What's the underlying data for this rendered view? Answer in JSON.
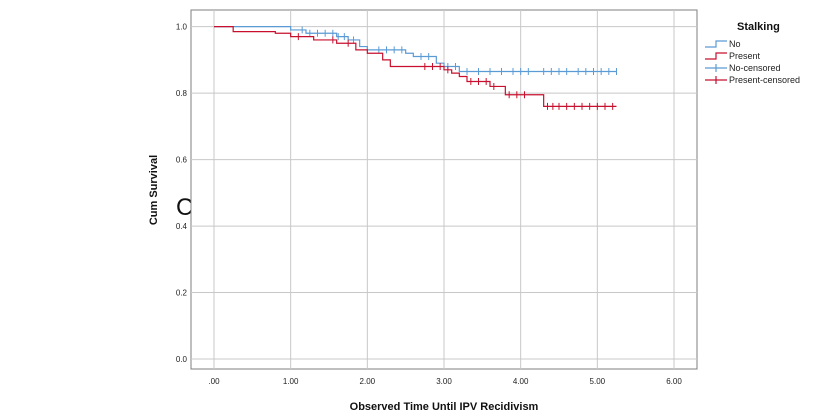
{
  "panel_letter": "C",
  "chart_data": {
    "type": "line",
    "subtype": "kaplan-meier",
    "xlabel": "Observed Time Until IPV Recidivism",
    "ylabel": "Cum Survival",
    "xlim": [
      -0.3,
      6.3
    ],
    "ylim": [
      -0.03,
      1.05
    ],
    "x_ticks": [
      0,
      1,
      2,
      3,
      4,
      5,
      6
    ],
    "x_tick_labels": [
      ".00",
      "1.00",
      "2.00",
      "3.00",
      "4.00",
      "5.00",
      "6.00"
    ],
    "y_ticks": [
      0,
      0.2,
      0.4,
      0.6,
      0.8,
      1.0
    ],
    "y_tick_labels": [
      "0.0",
      "0.2",
      "0.4",
      "0.6",
      "0.8",
      "1.0"
    ],
    "grid": true,
    "legend_position": "top-right",
    "legend": {
      "title": "Stalking",
      "entries": [
        "No",
        "Present",
        "No-censored",
        "Present-censored"
      ]
    },
    "colors": {
      "no": "#5b9bd5",
      "present": "#c8102e"
    },
    "series": [
      {
        "name": "No",
        "color": "#5b9bd5",
        "steps": [
          [
            0.0,
            1.0
          ],
          [
            1.0,
            0.99
          ],
          [
            1.2,
            0.98
          ],
          [
            1.6,
            0.97
          ],
          [
            1.75,
            0.96
          ],
          [
            1.9,
            0.94
          ],
          [
            2.0,
            0.93
          ],
          [
            2.5,
            0.92
          ],
          [
            2.6,
            0.91
          ],
          [
            2.9,
            0.89
          ],
          [
            3.0,
            0.88
          ],
          [
            3.2,
            0.865
          ],
          [
            5.25,
            0.865
          ]
        ],
        "censored": [
          1.15,
          1.25,
          1.35,
          1.45,
          1.55,
          1.62,
          1.7,
          1.82,
          2.15,
          2.25,
          2.35,
          2.45,
          2.7,
          2.8,
          3.05,
          3.15,
          3.3,
          3.45,
          3.6,
          3.75,
          3.9,
          4.0,
          4.1,
          4.3,
          4.4,
          4.5,
          4.6,
          4.75,
          4.85,
          4.95,
          5.05,
          5.15,
          5.25
        ]
      },
      {
        "name": "Present",
        "color": "#c8102e",
        "steps": [
          [
            0.0,
            1.0
          ],
          [
            0.25,
            0.985
          ],
          [
            0.8,
            0.98
          ],
          [
            1.0,
            0.97
          ],
          [
            1.3,
            0.96
          ],
          [
            1.6,
            0.95
          ],
          [
            1.85,
            0.93
          ],
          [
            2.0,
            0.92
          ],
          [
            2.2,
            0.9
          ],
          [
            2.3,
            0.88
          ],
          [
            3.0,
            0.87
          ],
          [
            3.1,
            0.86
          ],
          [
            3.2,
            0.85
          ],
          [
            3.3,
            0.835
          ],
          [
            3.6,
            0.82
          ],
          [
            3.8,
            0.795
          ],
          [
            4.3,
            0.76
          ],
          [
            5.25,
            0.76
          ]
        ],
        "censored": [
          1.1,
          1.55,
          1.75,
          2.75,
          2.85,
          2.95,
          3.05,
          3.35,
          3.45,
          3.55,
          3.65,
          3.85,
          3.95,
          4.05,
          4.35,
          4.42,
          4.5,
          4.6,
          4.7,
          4.8,
          4.9,
          5.0,
          5.1,
          5.2
        ]
      }
    ]
  }
}
